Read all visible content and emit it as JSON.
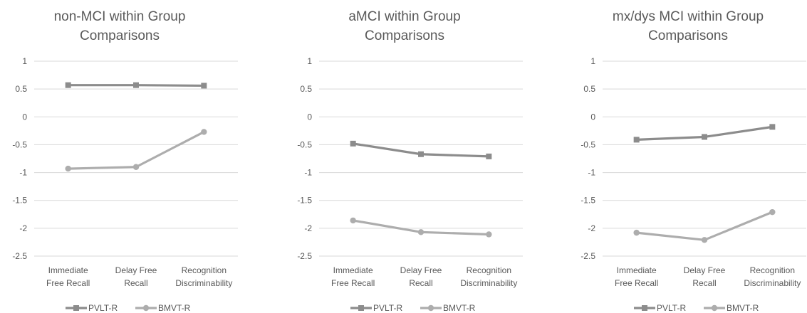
{
  "series_colors": {
    "PVLT-R": "#8c8c8c",
    "BMVT-R": "#adadad"
  },
  "chart_data": [
    {
      "type": "line",
      "title_lines": [
        "non-MCI within Group",
        "Comparisons"
      ],
      "categories": [
        [
          "Immediate",
          "Free Recall"
        ],
        [
          "Delay Free",
          "Recall"
        ],
        [
          "Recognition",
          "Discriminability"
        ]
      ],
      "ylim": [
        -2.5,
        1
      ],
      "yticks": [
        1,
        0.5,
        0,
        -0.5,
        -1,
        -1.5,
        -2,
        -2.5
      ],
      "ytick_labels": [
        "1",
        "0.5",
        "0",
        "-0.5",
        "-1",
        "-1.5",
        "-2",
        "-2.5"
      ],
      "legend_position": "bottom",
      "grid": true,
      "series": [
        {
          "name": "PVLT-R",
          "marker": "square",
          "values": [
            0.57,
            0.57,
            0.56
          ]
        },
        {
          "name": "BMVT-R",
          "marker": "circle",
          "values": [
            -0.93,
            -0.9,
            -0.27
          ]
        }
      ]
    },
    {
      "type": "line",
      "title_lines": [
        "aMCI within Group",
        "Comparisons"
      ],
      "categories": [
        [
          "Immediate",
          "Free Recall"
        ],
        [
          "Delay Free",
          "Recall"
        ],
        [
          "Recognition",
          "Discriminability"
        ]
      ],
      "ylim": [
        -2.5,
        1
      ],
      "yticks": [
        1,
        0.5,
        0,
        -0.5,
        -1,
        -1.5,
        -2,
        -2.5
      ],
      "ytick_labels": [
        "1",
        "0.5",
        "0",
        "-0.5",
        "-1",
        "-1.5",
        "-2",
        "-2.5"
      ],
      "legend_position": "bottom",
      "grid": true,
      "series": [
        {
          "name": "PVLT-R",
          "marker": "square",
          "values": [
            -0.48,
            -0.67,
            -0.71
          ]
        },
        {
          "name": "BMVT-R",
          "marker": "circle",
          "values": [
            -1.86,
            -2.07,
            -2.11
          ]
        }
      ]
    },
    {
      "type": "line",
      "title_lines": [
        "mx/dys MCI within Group",
        "Comparisons"
      ],
      "categories": [
        [
          "Immediate",
          "Free Recall"
        ],
        [
          "Delay Free",
          "Recall"
        ],
        [
          "Recognition",
          "Discriminability"
        ]
      ],
      "ylim": [
        -2.5,
        1
      ],
      "yticks": [
        1,
        0.5,
        0,
        -0.5,
        -1,
        -1.5,
        -2,
        -2.5
      ],
      "ytick_labels": [
        "1",
        "0.5",
        "0",
        "-0.5",
        "-1",
        "-1.5",
        "-2",
        "-2.5"
      ],
      "legend_position": "bottom",
      "grid": true,
      "series": [
        {
          "name": "PVLT-R",
          "marker": "square",
          "values": [
            -0.41,
            -0.36,
            -0.18
          ]
        },
        {
          "name": "BMVT-R",
          "marker": "circle",
          "values": [
            -2.08,
            -2.21,
            -1.71
          ]
        }
      ]
    }
  ]
}
